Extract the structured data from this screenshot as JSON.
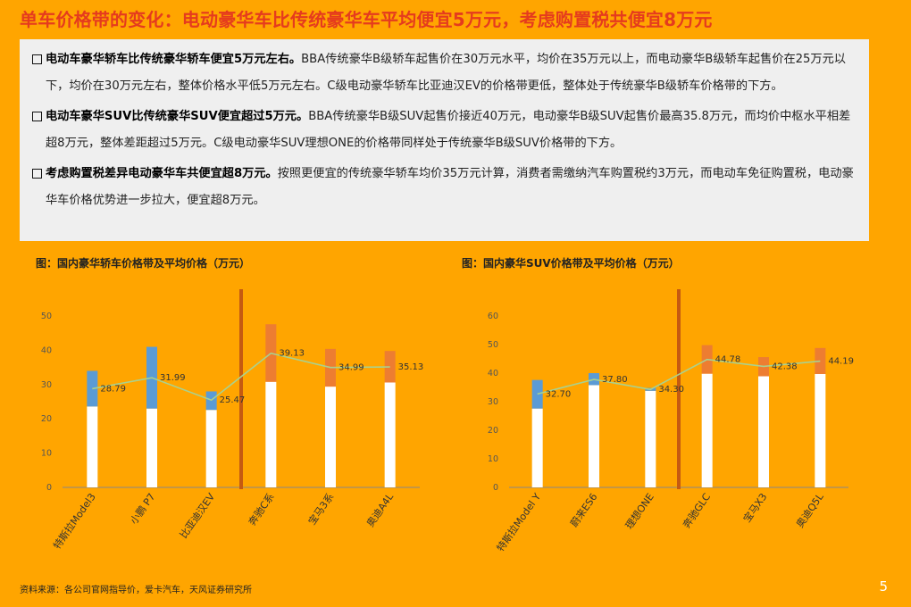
{
  "title": "单车价格带的变化：电动豪华车比传统豪华车平均便宜5万元，考虑购置税共便宜8万元",
  "bullets": [
    {
      "bold": "电动车豪华轿车比传统豪华轿车便宜5万元左右。",
      "text": "BBA传统豪华B级轿车起售价在30万元水平，均价在35万元以上，而电动豪华B级轿车起售价在25万元以下，均价在30万元左右，整体价格水平低5万元左右。C级电动豪华轿车比亚迪汉EV的价格带更低，整体处于传统豪华B级轿车价格带的下方。"
    },
    {
      "bold": "电动车豪华SUV比传统豪华SUV便宜超过5万元。",
      "text": "BBA传统豪华B级SUV起售价接近40万元，电动豪华B级SUV起售价最高35.8万元，而均价中枢水平相差超8万元，整体差距超过5万元。C级电动豪华SUV理想ONE的价格带同样处于传统豪华B级SUV价格带的下方。"
    },
    {
      "bold": "考虑购置税差异电动豪华车共便宜超8万元。",
      "text": "按照更便宜的传统豪华轿车均价35万元计算，消费者需缴纳汽车购置税约3万元，而电动车免征购置税，电动豪华车价格优势进一步拉大，便宜超8万元。"
    }
  ],
  "chart_data": [
    {
      "type": "bar",
      "title": "图：国内豪华轿车价格带及平均价格（万元）",
      "categories": [
        "特斯拉Model3",
        "小鹏 P7",
        "比亚迪汉EV",
        "奔驰C系",
        "宝马3系",
        "奥迪A4L"
      ],
      "series": [
        {
          "name": "",
          "kind": "floating-range",
          "low": [
            23.6,
            23.0,
            22.6,
            30.8,
            29.4,
            30.6
          ],
          "high": [
            34.0,
            41.0,
            28.0,
            47.6,
            40.4,
            39.8
          ]
        },
        {
          "name": "",
          "kind": "line",
          "values": [
            28.79,
            31.99,
            25.47,
            39.13,
            34.99,
            35.13
          ]
        }
      ],
      "yticks": [
        0,
        10,
        20,
        30,
        40,
        50
      ],
      "ylim": [
        0,
        55
      ],
      "colors": {
        "electric": "#5B9BD5",
        "traditional": "#ED7D31",
        "base": "#FFFFFF",
        "line": "#A9D18E",
        "divider": "#C55A11"
      },
      "electric_count": 3
    },
    {
      "type": "bar",
      "title": "图：国内豪华SUV价格带及平均价格（万元）",
      "categories": [
        "特斯拉Model Y",
        "蔚来ES6",
        "理想ONE",
        "奔驰GLC",
        "宝马X3",
        "奥迪Q5L"
      ],
      "series": [
        {
          "name": "",
          "kind": "floating-range",
          "low": [
            27.6,
            35.8,
            33.8,
            39.8,
            38.9,
            39.7
          ],
          "high": [
            37.6,
            40.0,
            34.8,
            49.8,
            45.6,
            48.8
          ]
        },
        {
          "name": "",
          "kind": "line",
          "values": [
            32.7,
            37.8,
            34.3,
            44.78,
            42.38,
            44.19
          ]
        }
      ],
      "yticks": [
        0,
        10,
        20,
        30,
        40,
        50,
        60
      ],
      "ylim": [
        0,
        65
      ],
      "colors": {
        "electric": "#5B9BD5",
        "traditional": "#ED7D31",
        "base": "#FFFFFF",
        "line": "#A9D18E",
        "divider": "#C55A11"
      },
      "electric_count": 3
    }
  ],
  "source": "资料来源：各公司官网指导价，爱卡汽车，天风证券研究所",
  "page_number": "5"
}
